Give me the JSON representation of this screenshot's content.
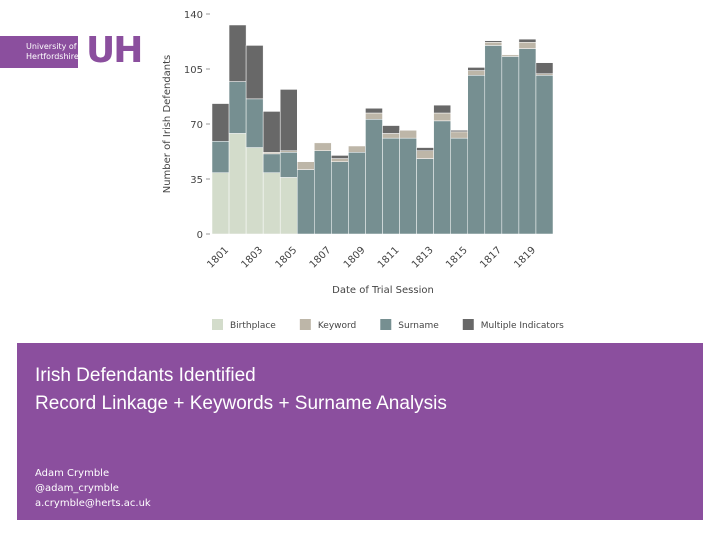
{
  "logo": {
    "text": "University of Hertfordshire",
    "mark": "UH"
  },
  "chart_data": {
    "type": "stacked_bar",
    "x_label": "Date of Trial Session",
    "y_label": "Number of Irish Defendants",
    "categories": [
      "1801",
      null,
      "1803",
      null,
      "1805",
      null,
      "1807",
      null,
      "1809",
      null,
      "1811",
      null,
      "1813",
      null,
      "1815",
      null,
      "1817",
      null,
      "1819",
      null
    ],
    "series": [
      {
        "name": "Birthplace",
        "color": "#d3dccb",
        "values": [
          39,
          64,
          55,
          39,
          36,
          0,
          0,
          0,
          0,
          0,
          0,
          0,
          0,
          0,
          0,
          0,
          0,
          0,
          0,
          0
        ]
      },
      {
        "name": "Keyword",
        "color": "#bdb6a8",
        "values": [
          0,
          0,
          0,
          1,
          1,
          5,
          5,
          2,
          4,
          4,
          3,
          5,
          5,
          5,
          4,
          3,
          2,
          1,
          4,
          1
        ]
      },
      {
        "name": "Surname",
        "color": "#768f91",
        "values": [
          20,
          33,
          31,
          12,
          16,
          41,
          53,
          46,
          52,
          73,
          61,
          61,
          48,
          72,
          61,
          101,
          120,
          113,
          118,
          101
        ]
      },
      {
        "name": "Multiple Indicators",
        "color": "#686868",
        "values": [
          24,
          36,
          34,
          26,
          39,
          0,
          0,
          2,
          0,
          3,
          5,
          0,
          2,
          5,
          1,
          2,
          1,
          0,
          2,
          7
        ]
      }
    ],
    "ylim": [
      0,
      140
    ],
    "yticks": [
      0,
      35,
      70,
      105,
      140
    ],
    "grid": false,
    "legend": "bottom"
  },
  "slide": {
    "title_lines": [
      "Irish Defendants Identified",
      "Record Linkage + Keywords + Surname Analysis"
    ],
    "author_lines": [
      "Adam Crymble",
      "@adam_crymble",
      "a.crymble@herts.ac.uk"
    ]
  }
}
